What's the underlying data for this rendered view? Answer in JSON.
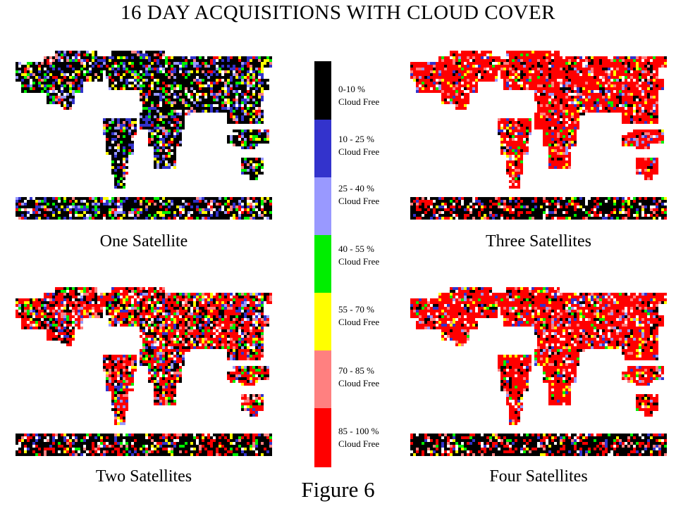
{
  "title": "16 DAY ACQUISITIONS WITH CLOUD COVER",
  "figure_label": "Figure 6",
  "maps": [
    {
      "key": "one",
      "label": "One Satellite",
      "dominant": "black"
    },
    {
      "key": "three",
      "label": "Three Satellites",
      "dominant": "red"
    },
    {
      "key": "two",
      "label": "Two Satellites",
      "dominant": "mixed"
    },
    {
      "key": "four",
      "label": "Four Satellites",
      "dominant": "red"
    }
  ],
  "legend": [
    {
      "range": "0-10 %",
      "suffix": "Cloud Free",
      "color": "#000000"
    },
    {
      "range": "10 - 25 %",
      "suffix": "Cloud Free",
      "color": "#3333cc"
    },
    {
      "range": "25 - 40 %",
      "suffix": "Cloud Free",
      "color": "#9999ff"
    },
    {
      "range": "40 - 55 %",
      "suffix": "Cloud Free",
      "color": "#00ee00"
    },
    {
      "range": "55 - 70 %",
      "suffix": "Cloud Free",
      "color": "#ffff00"
    },
    {
      "range": "70 - 85 %",
      "suffix": "Cloud Free",
      "color": "#ff8080"
    },
    {
      "range": "85 - 100 %",
      "suffix": "Cloud Free",
      "color": "#ff0000"
    }
  ]
}
